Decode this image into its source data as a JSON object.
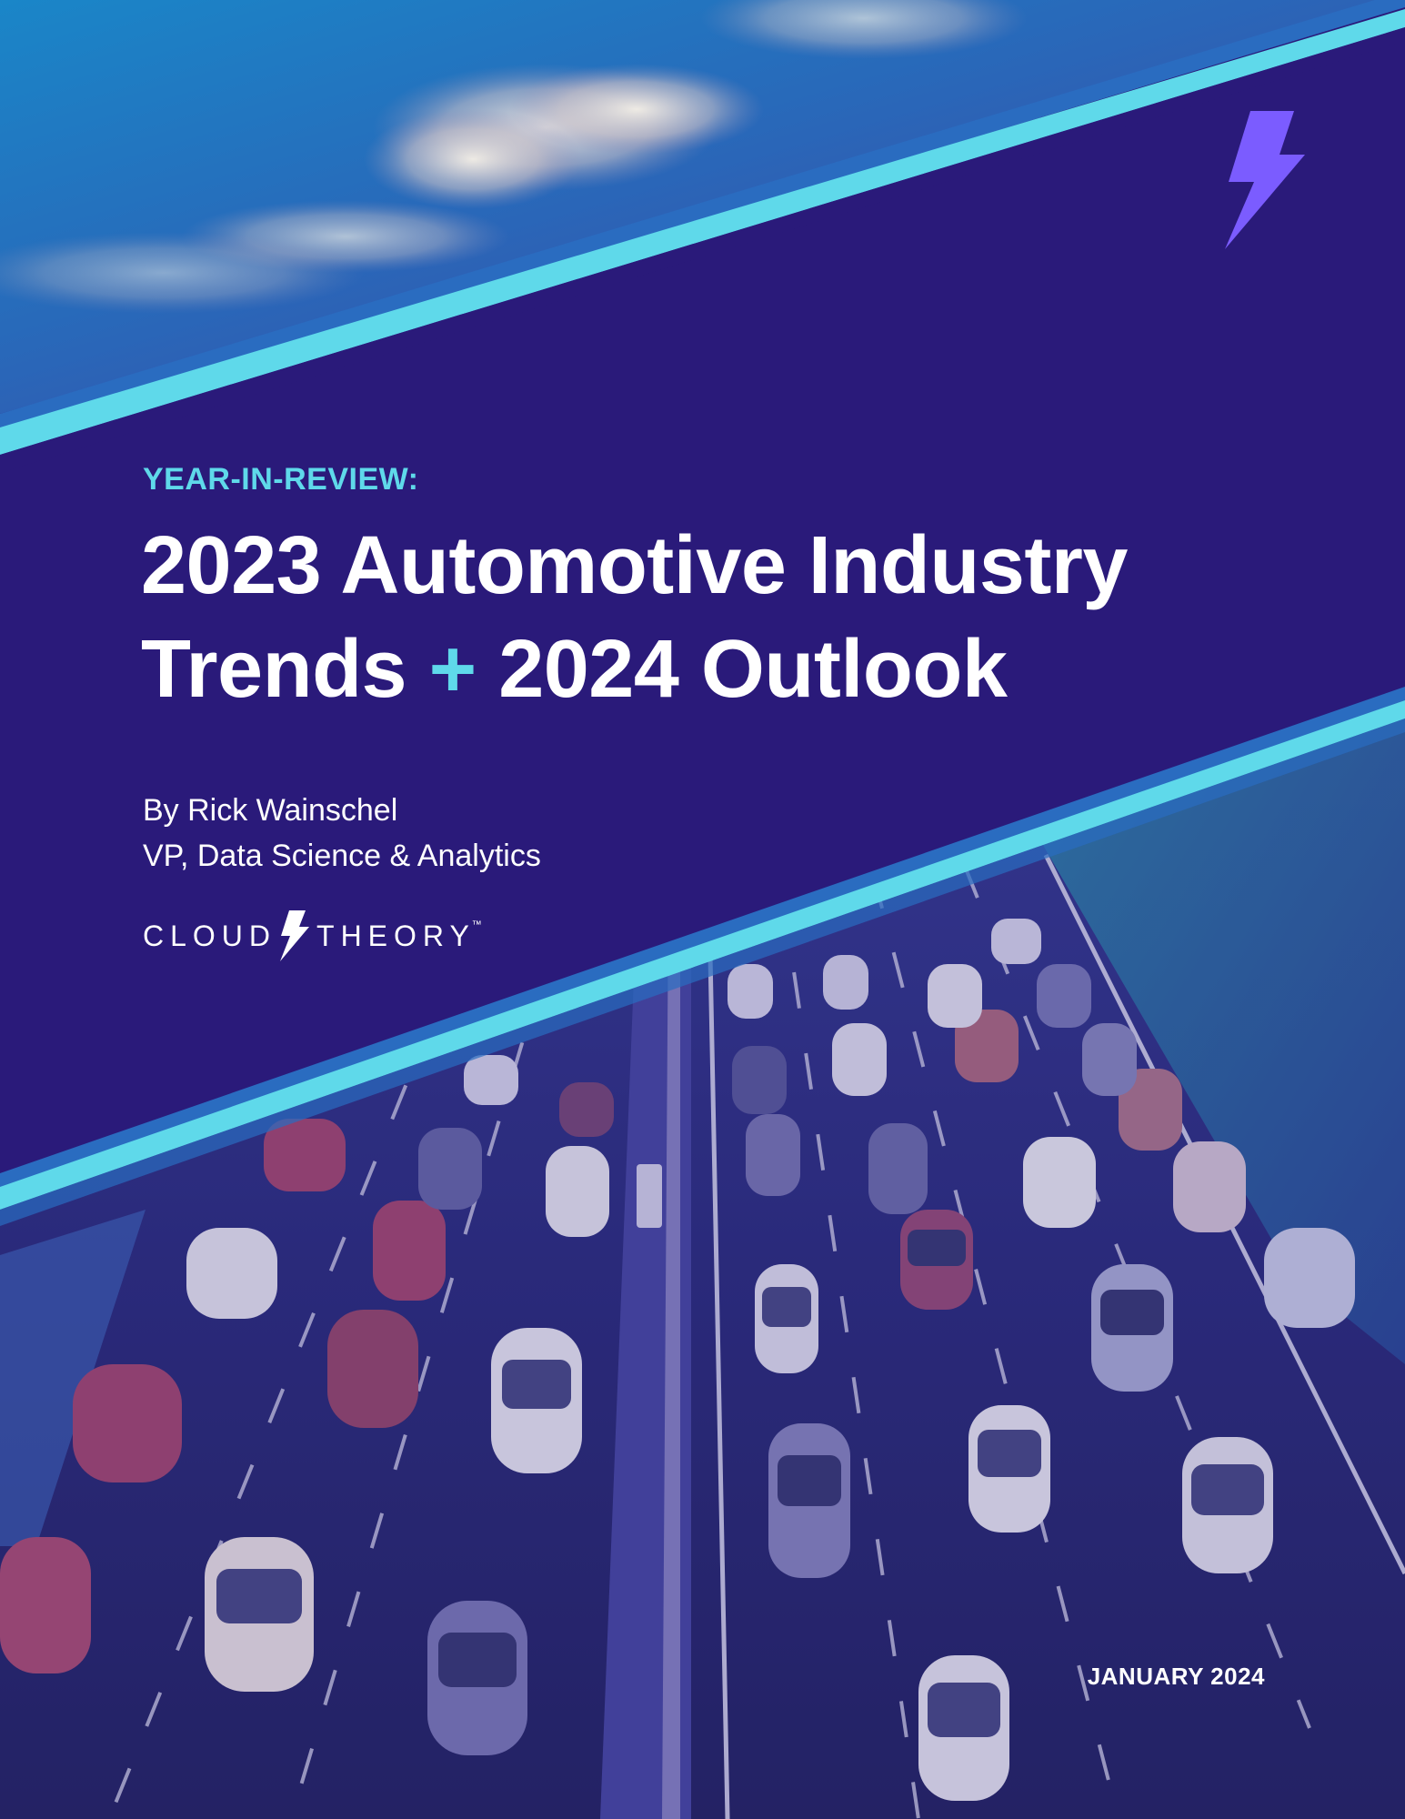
{
  "cover": {
    "eyebrow": "YEAR-IN-REVIEW:",
    "title_line1": "2023 Automotive Industry",
    "title_line2_part1": "Trends",
    "title_line2_plus": "+",
    "title_line2_part2": "2024 Outlook",
    "author_line": "By Rick Wainschel",
    "author_role": "VP, Data Science & Analytics",
    "date": "JANUARY 2024"
  },
  "logo": {
    "word1": "CLOUD",
    "word2": "THEORY",
    "trademark": "™",
    "icon": "lightning-bolt-icon"
  },
  "colors": {
    "background": "#2a1a7a",
    "accent": "#5fd9ea",
    "bolt": "#7b5cff",
    "text": "#ffffff"
  },
  "images": {
    "top": "sky with clouds",
    "bottom": "aerial view of highway traffic"
  }
}
